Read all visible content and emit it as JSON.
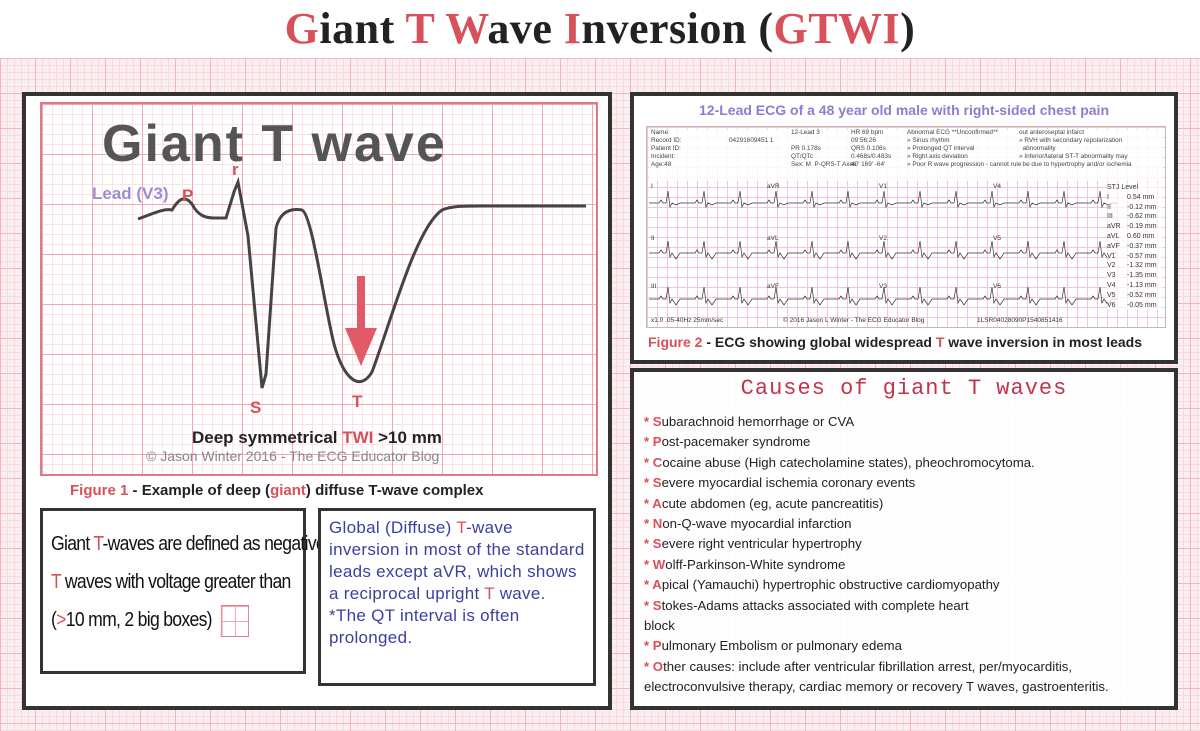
{
  "title": {
    "parts": [
      {
        "cap": "G",
        "rest": "iant "
      },
      {
        "cap": "T",
        "rest": " "
      },
      {
        "cap": "W",
        "rest": "ave "
      },
      {
        "cap": "I",
        "rest": "nversion ("
      },
      {
        "cap": "GTWI",
        "rest": ")"
      }
    ]
  },
  "figure1": {
    "heading": "Giant T wave",
    "lead": "Lead (V3)",
    "labels": {
      "p": "P",
      "r": "r",
      "s": "S",
      "t": "T"
    },
    "twi_caption_prefix": "Deep symmetrical ",
    "twi_caption_red": "TWI",
    "twi_caption_suffix": " >10 mm",
    "copyright": "© Jason Winter 2016 - The ECG Educator Blog",
    "caption_figure": "Figure 1",
    "caption_mid": " - Example of deep (",
    "caption_red": "giant",
    "caption_end": ") diffuse T-wave complex"
  },
  "definition": {
    "line1_a": "Giant ",
    "line1_red": "T",
    "line1_b": "-waves are defined as negative",
    "line2_red": "T",
    "line2_b": " waves with voltage greater than",
    "line3_a": "(",
    "line3_red": ">",
    "line3_b": "10 mm,  2  big  boxes)"
  },
  "global": {
    "text_a": "Global (Diffuse) ",
    "text_red": "T",
    "text_b": "-wave inversion in most of the standard leads except aVR, which shows a reciprocal upright ",
    "text_red2": "T",
    "text_c": " wave.",
    "note": "*The QT interval is often prolonged."
  },
  "figure2": {
    "title": "12-Lead ECG of a 48 year old male with right-sided chest pain",
    "header_cols": [
      "Name:\nRecord ID:\nPatient ID:\nIncident:\nAge:48",
      "\n04291609451 1",
      "12-Lead 3\n\nPR 0.178s\nQT/QTc\nSex: M  P-QRS-T Axes",
      "HR 69 bpm\n09:56:26\nQRS 0.106s\n0.468s/0.483s\n40' 169' -64'",
      "Abnormal ECG **Unconfirmed**\n» Sinus rhythm\n» Prolonged QT interval\n» Right axis deviation\n» Poor R wave progression - cannot rule",
      "out anteroseptal infarct\n» RVH with secondary repolarization\n  abnormality\n» Inferior/lateral ST-T abnormality may\n  be due to hypertrophy and/or ischemia"
    ],
    "leads": [
      "I",
      "aVR",
      "V1",
      "V4",
      "II",
      "aVL",
      "V2",
      "V5",
      "III",
      "aVF",
      "V3",
      "V6"
    ],
    "footer_left": "x1.0 .05-40Hz 25mm/sec",
    "footer_mid": "© 2016 Jason L Winter - The ECG Educator Blog",
    "footer_right": "1LSR04028090P1540851416",
    "stj_title": "STJ Level",
    "stj": [
      {
        "lead": "I",
        "value": "0.54 mm"
      },
      {
        "lead": "II",
        "value": "-0.12 mm"
      },
      {
        "lead": "III",
        "value": "-0.62 mm"
      },
      {
        "lead": "aVR",
        "value": "-0.19 mm"
      },
      {
        "lead": "aVL",
        "value": "0.60 mm"
      },
      {
        "lead": "aVF",
        "value": "-0.37 mm"
      },
      {
        "lead": "V1",
        "value": "-0.57 mm"
      },
      {
        "lead": "V2",
        "value": "-1.32 mm"
      },
      {
        "lead": "V3",
        "value": "-1.35 mm"
      },
      {
        "lead": "V4",
        "value": "-1.13 mm"
      },
      {
        "lead": "V5",
        "value": "-0.52 mm"
      },
      {
        "lead": "V6",
        "value": "-0.05 mm"
      }
    ],
    "caption_figure": "Figure 2",
    "caption_a": " - ECG showing global widespread ",
    "caption_red": "T",
    "caption_b": " wave inversion in most leads"
  },
  "causes": {
    "heading": "Causes of giant T waves",
    "items": [
      {
        "letter": "S",
        "rest": "ubarachnoid hemorrhage or CVA"
      },
      {
        "letter": "P",
        "rest": "ost-pacemaker syndrome"
      },
      {
        "letter": "C",
        "rest": "ocaine abuse (High catecholamine states), pheochromocytoma."
      },
      {
        "letter": "S",
        "rest": "evere myocardial ischemia coronary events"
      },
      {
        "letter": "A",
        "rest": "cute abdomen (eg, acute pancreatitis)"
      },
      {
        "letter": "N",
        "rest": "on-Q-wave myocardial infarction"
      },
      {
        "letter": "S",
        "rest": "evere right ventricular hypertrophy"
      },
      {
        "letter": "W",
        "rest": "olff-Parkinson-White syndrome"
      },
      {
        "letter": "A",
        "rest": "pical (Yamauchi) hypertrophic obstructive cardiomyopathy"
      },
      {
        "letter": "S",
        "rest": "tokes-Adams attacks associated with complete heart"
      },
      {
        "letter": "",
        "rest": "block",
        "cont": true
      },
      {
        "letter": "P",
        "rest": "ulmonary Embolism or pulmonary edema"
      },
      {
        "letter": "O",
        "rest": "ther causes: include after ventricular fibrillation arrest, per/myocarditis,"
      },
      {
        "letter": "",
        "rest": "electroconvulsive therapy, cardiac memory or recovery T waves, gastroenteritis.",
        "cont": true
      }
    ]
  },
  "colors": {
    "accent": "#d8505a",
    "blue_text": "#3b3fa0",
    "grid": "#f2b6bf"
  }
}
